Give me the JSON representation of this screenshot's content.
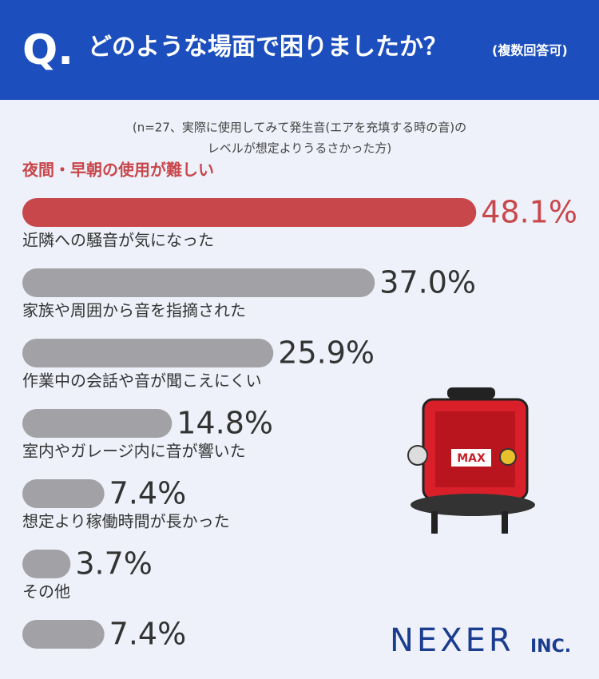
{
  "chart_data": {
    "type": "bar",
    "question_mark": "Q.",
    "title": "どのような場面で困りましたか？",
    "title_note": "(複数回答可)",
    "subtitle": [
      "(n=27、実際に使用してみて発生音(エアを充填する時の音)の",
      "レベルが想定よりうるさかった方)"
    ],
    "categories": [
      "夜間・早朝の使用が難しい",
      "近隣への騒音が気になった",
      "家族や周囲から音を指摘された",
      "作業中の会話や音が聞こえにくい",
      "室内やガレージ内に音が響いた",
      "想定より稼働時間が長かった",
      "その他"
    ],
    "values": [
      48.1,
      37.0,
      25.9,
      14.8,
      7.4,
      3.7,
      7.4
    ],
    "value_labels": [
      "48.1%",
      "37.0%",
      "25.9%",
      "14.8%",
      "7.4%",
      "3.7%",
      "7.4%"
    ],
    "colors": [
      "#c8474b",
      "#a2a2a6",
      "#a2a2a6",
      "#a2a2a6",
      "#a2a2a6",
      "#a2a2a6",
      "#a2a2a6"
    ],
    "xlim": [
      0,
      50
    ],
    "illustration_label": "MAX",
    "logo": "NEXER",
    "logo_suffix": "INC."
  }
}
